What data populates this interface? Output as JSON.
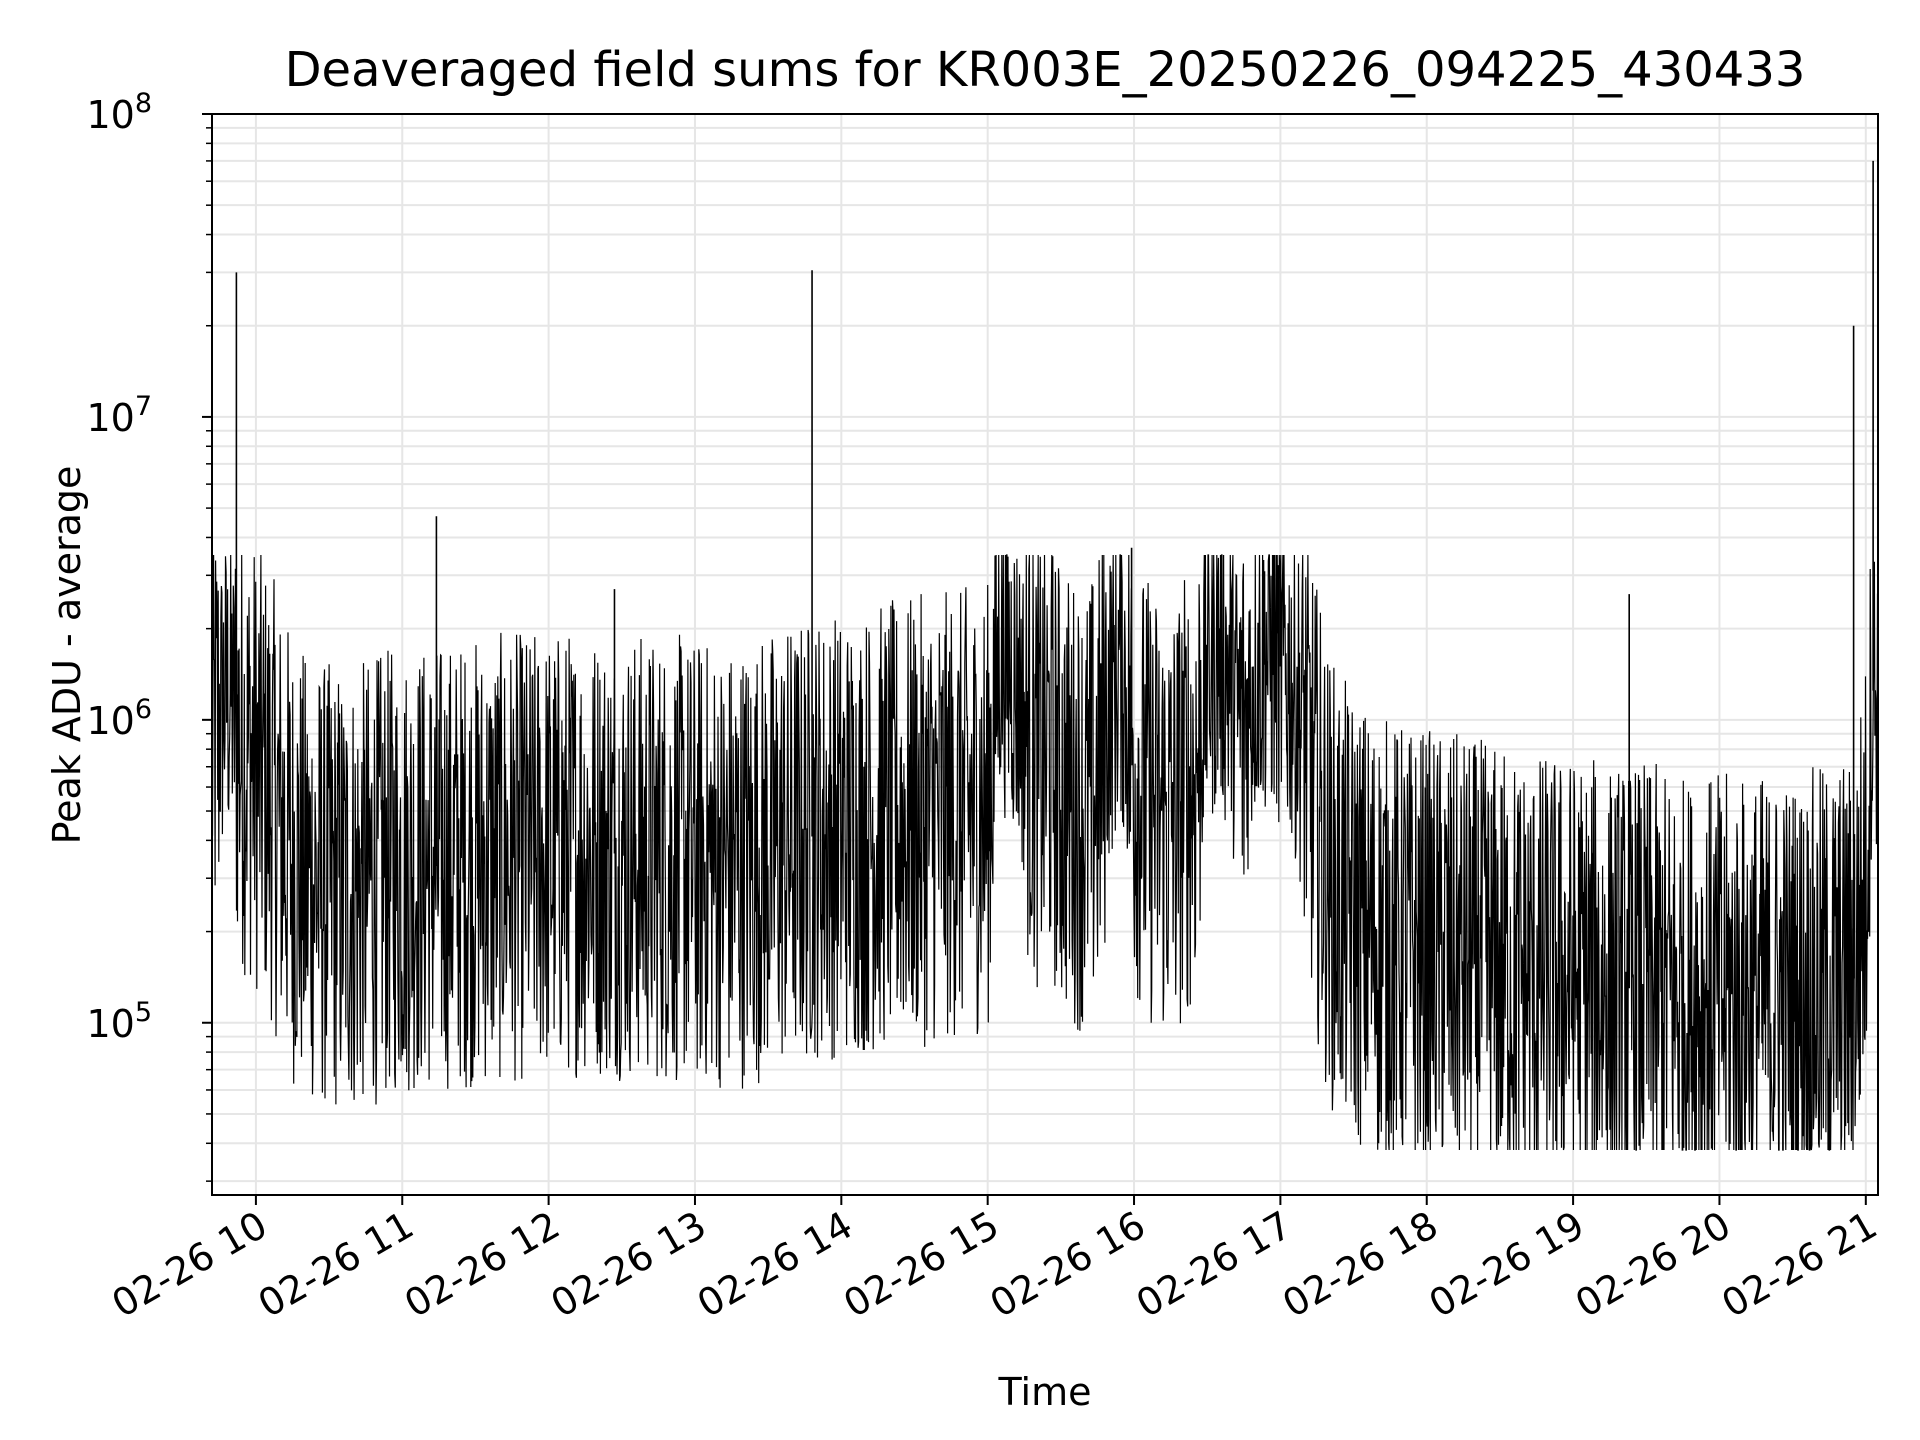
{
  "chart_data": {
    "type": "line",
    "title": "Deaveraged field sums for KR003E_20250226_094225_430433",
    "xlabel": "Time",
    "ylabel": "Peak ADU - average",
    "yscale": "log",
    "ylim": [
      27000,
      100000000
    ],
    "xlim": [
      "2025-02-26 09:42",
      "2025-02-26 21:05"
    ],
    "grid": true,
    "line_color": "#000000",
    "x_ticks": [
      "02-26 10",
      "02-26 11",
      "02-26 12",
      "02-26 13",
      "02-26 14",
      "02-26 15",
      "02-26 16",
      "02-26 17",
      "02-26 18",
      "02-26 19",
      "02-26 20",
      "02-26 21"
    ],
    "y_ticks": [
      {
        "base": "10",
        "exp": "5",
        "value": 100000
      },
      {
        "base": "10",
        "exp": "6",
        "value": 1000000
      },
      {
        "base": "10",
        "exp": "7",
        "value": 10000000
      },
      {
        "base": "10",
        "exp": "8",
        "value": 100000000
      }
    ],
    "series": [
      {
        "x": [
          "2025-02-26 09:42",
          "2025-02-26 09:45",
          "2025-02-26 09:47",
          "2025-02-26 09:50",
          "2025-02-26 09:52",
          "2025-02-26 09:55",
          "2025-02-26 09:58",
          "2025-02-26 10:00",
          "2025-02-26 10:05",
          "2025-02-26 10:10",
          "2025-02-26 10:15",
          "2025-02-26 10:20",
          "2025-02-26 10:30",
          "2025-02-26 10:40",
          "2025-02-26 10:50",
          "2025-02-26 11:00",
          "2025-02-26 11:15",
          "2025-02-26 11:30",
          "2025-02-26 11:45",
          "2025-02-26 12:00",
          "2025-02-26 12:15",
          "2025-02-26 12:30",
          "2025-02-26 12:45",
          "2025-02-26 13:00",
          "2025-02-26 13:15",
          "2025-02-26 13:30",
          "2025-02-26 13:45",
          "2025-02-26 13:50",
          "2025-02-26 14:00",
          "2025-02-26 14:15",
          "2025-02-26 14:30",
          "2025-02-26 14:45",
          "2025-02-26 15:00",
          "2025-02-26 15:05",
          "2025-02-26 15:10",
          "2025-02-26 15:15",
          "2025-02-26 15:20",
          "2025-02-26 15:25",
          "2025-02-26 15:30",
          "2025-02-26 15:35",
          "2025-02-26 15:40",
          "2025-02-26 15:45",
          "2025-02-26 15:50",
          "2025-02-26 15:55",
          "2025-02-26 16:00",
          "2025-02-26 16:05",
          "2025-02-26 16:10",
          "2025-02-26 16:15",
          "2025-02-26 16:20",
          "2025-02-26 16:25",
          "2025-02-26 16:30",
          "2025-02-26 16:35",
          "2025-02-26 16:40",
          "2025-02-26 16:45",
          "2025-02-26 16:50",
          "2025-02-26 16:55",
          "2025-02-26 17:00",
          "2025-02-26 17:05",
          "2025-02-26 17:10",
          "2025-02-26 17:15",
          "2025-02-26 17:20",
          "2025-02-26 17:25",
          "2025-02-26 17:30",
          "2025-02-26 17:45",
          "2025-02-26 18:00",
          "2025-02-26 18:15",
          "2025-02-26 18:30",
          "2025-02-26 18:45",
          "2025-02-26 19:00",
          "2025-02-26 19:15",
          "2025-02-26 19:30",
          "2025-02-26 19:45",
          "2025-02-26 20:00",
          "2025-02-26 20:15",
          "2025-02-26 20:30",
          "2025-02-26 20:45",
          "2025-02-26 20:55",
          "2025-02-26 21:00",
          "2025-02-26 21:02",
          "2025-02-26 21:04",
          "2025-02-26 21:05"
        ],
        "y": [
          800000,
          1000000,
          1200000,
          1200000,
          900000,
          800000,
          750000,
          700000,
          600000,
          450000,
          350000,
          300000,
          280000,
          270000,
          300000,
          320000,
          330000,
          340000,
          350000,
          360000,
          370000,
          360000,
          350000,
          340000,
          330000,
          360000,
          400000,
          420000,
          420000,
          440000,
          460000,
          480000,
          520000,
          1800000,
          1500000,
          1000000,
          700000,
          800000,
          600000,
          550000,
          500000,
          600000,
          1200000,
          1600000,
          700000,
          550000,
          500000,
          450000,
          550000,
          650000,
          1500000,
          1800000,
          1300000,
          900000,
          1600000,
          1700000,
          1500000,
          1300000,
          900000,
          500000,
          300000,
          250000,
          220000,
          180000,
          170000,
          160000,
          150000,
          140000,
          140000,
          130000,
          130000,
          120000,
          120000,
          120000,
          120000,
          130000,
          140000,
          300000,
          1200000,
          1300000,
          1100000
        ],
        "y_range_band": {
          "low": 60000,
          "high": 1500000
        },
        "spikes": [
          {
            "x": "2025-02-26 09:52",
            "y": 30000000
          },
          {
            "x": "2025-02-26 11:14",
            "y": 4700000
          },
          {
            "x": "2025-02-26 12:27",
            "y": 2700000
          },
          {
            "x": "2025-02-26 13:48",
            "y": 30500000
          },
          {
            "x": "2025-02-26 15:59",
            "y": 3700000
          },
          {
            "x": "2025-02-26 17:00",
            "y": 3300000
          },
          {
            "x": "2025-02-26 19:23",
            "y": 2600000
          },
          {
            "x": "2025-02-26 20:55",
            "y": 20000000
          },
          {
            "x": "2025-02-26 21:03",
            "y": 70000000
          }
        ]
      }
    ]
  }
}
